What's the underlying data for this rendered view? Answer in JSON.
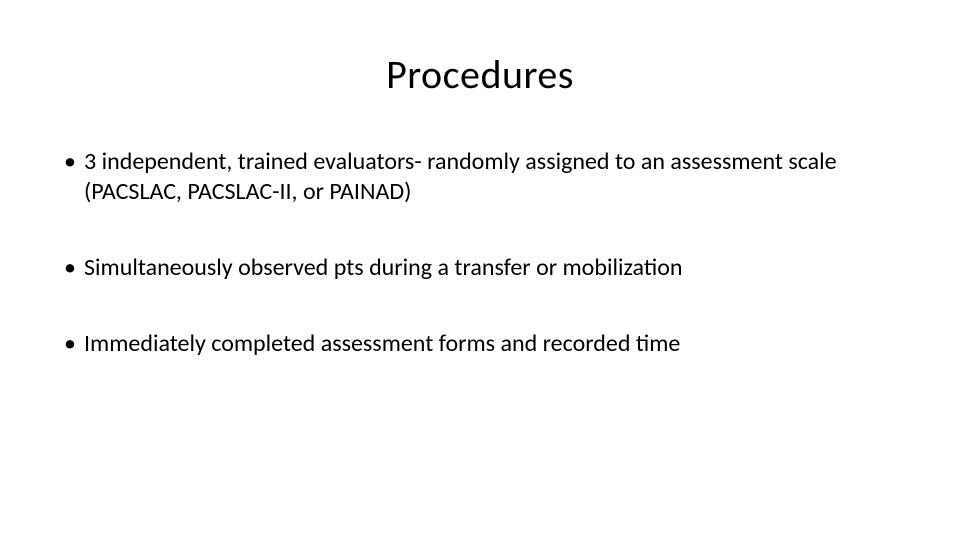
{
  "slide": {
    "title": "Procedures",
    "title_fontsize": 40,
    "title_color": "#000000",
    "background_color": "#ffffff",
    "bullets": [
      {
        "text": "3 independent, trained evaluators- randomly assigned to an assessment scale (PACSLAC, PACSLAC-II, or PAINAD)"
      },
      {
        "text": "Simultaneously observed pts during a transfer or mobilization"
      },
      {
        "text": "Immediately completed assessment forms and recorded time"
      }
    ],
    "bullet_fontsize": 24,
    "bullet_color": "#000000",
    "font_family": "Calibri"
  }
}
